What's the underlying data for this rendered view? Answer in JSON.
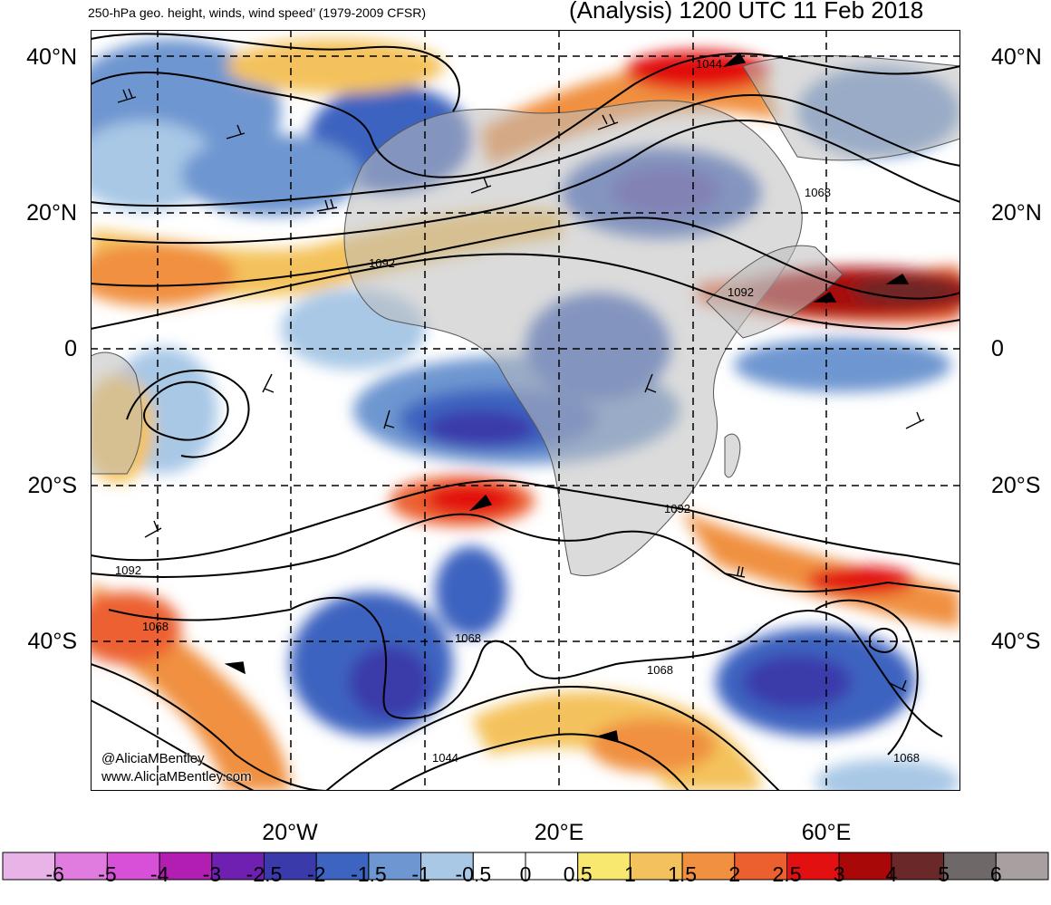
{
  "header": {
    "left": "250-hPa geo. height, winds, wind speed’ (1979-2009 CFSR)",
    "right": "(Analysis) 1200 UTC 11 Feb 2018"
  },
  "lat_labels": [
    {
      "text": "40°N"
    },
    {
      "text": "20°N"
    },
    {
      "text": "0"
    },
    {
      "text": "20°S"
    },
    {
      "text": "40°S"
    }
  ],
  "lon_labels": [
    {
      "text": "20°W"
    },
    {
      "text": "20°E"
    },
    {
      "text": "60°E"
    }
  ],
  "contour_labels": [
    {
      "text": "1044"
    },
    {
      "text": "1068"
    },
    {
      "text": "1092"
    },
    {
      "text": "1092"
    },
    {
      "text": "1092"
    },
    {
      "text": "1092"
    },
    {
      "text": "1068"
    },
    {
      "text": "1068"
    },
    {
      "text": "1068"
    },
    {
      "text": "1044"
    },
    {
      "text": "1068"
    }
  ],
  "credit": {
    "line1": "@AliciaMBentley",
    "line2": "www.AliciaMBentley.com"
  },
  "colorbar": {
    "labels": [
      "-6",
      "-5",
      "-4",
      "-3",
      "-2.5",
      "-2",
      "-1.5",
      "-1",
      "-0.5",
      "0",
      "0.5",
      "1",
      "1.5",
      "2",
      "2.5",
      "3",
      "4",
      "5",
      "6"
    ],
    "colors": [
      "#e8b4e8",
      "#e07be0",
      "#d84fd8",
      "#b21db2",
      "#7020b0",
      "#3a3aaa",
      "#3c64c0",
      "#6e96d0",
      "#a8c8e6",
      "#ffffff",
      "#ffffff",
      "#f8e870",
      "#f4c25c",
      "#f09040",
      "#ec6030",
      "#e21010",
      "#a80808",
      "#6a2828",
      "#6e6868",
      "#a8a0a0"
    ]
  }
}
